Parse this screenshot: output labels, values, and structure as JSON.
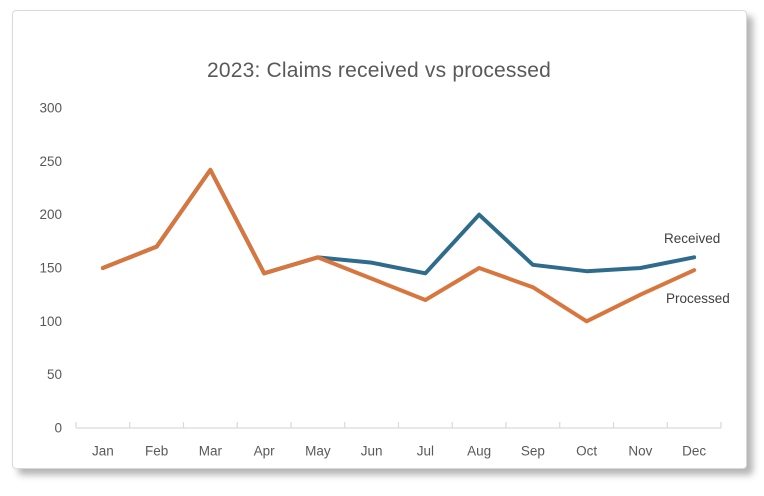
{
  "chart_data": {
    "type": "line",
    "title": "2023: Claims received vs processed",
    "categories": [
      "Jan",
      "Feb",
      "Mar",
      "Apr",
      "May",
      "Jun",
      "Jul",
      "Aug",
      "Sep",
      "Oct",
      "Nov",
      "Dec"
    ],
    "series": [
      {
        "name": "Received",
        "color": "#2F6B8C",
        "values": [
          150,
          170,
          242,
          145,
          160,
          155,
          145,
          200,
          153,
          147,
          150,
          160
        ]
      },
      {
        "name": "Processed",
        "color": "#D8763E",
        "values": [
          150,
          170,
          242,
          145,
          160,
          140,
          120,
          150,
          132,
          100,
          125,
          148
        ]
      }
    ],
    "xlabel": "",
    "ylabel": "",
    "yticks": [
      0,
      50,
      100,
      150,
      200,
      250,
      300
    ],
    "ylim": [
      0,
      300
    ],
    "grid": false,
    "legend_position": "inline-end-labels",
    "notes": "Received line hidden behind Processed line Jan through May (identical values); series labels drawn at right end of lines"
  },
  "colors": {
    "title_text": "#595959",
    "axis_text": "#595959",
    "series_label_text": "#3F3F3F",
    "axis_line": "#D9D9D9",
    "card_background": "#FFFFFF",
    "page_background": "#FFFFFF"
  }
}
